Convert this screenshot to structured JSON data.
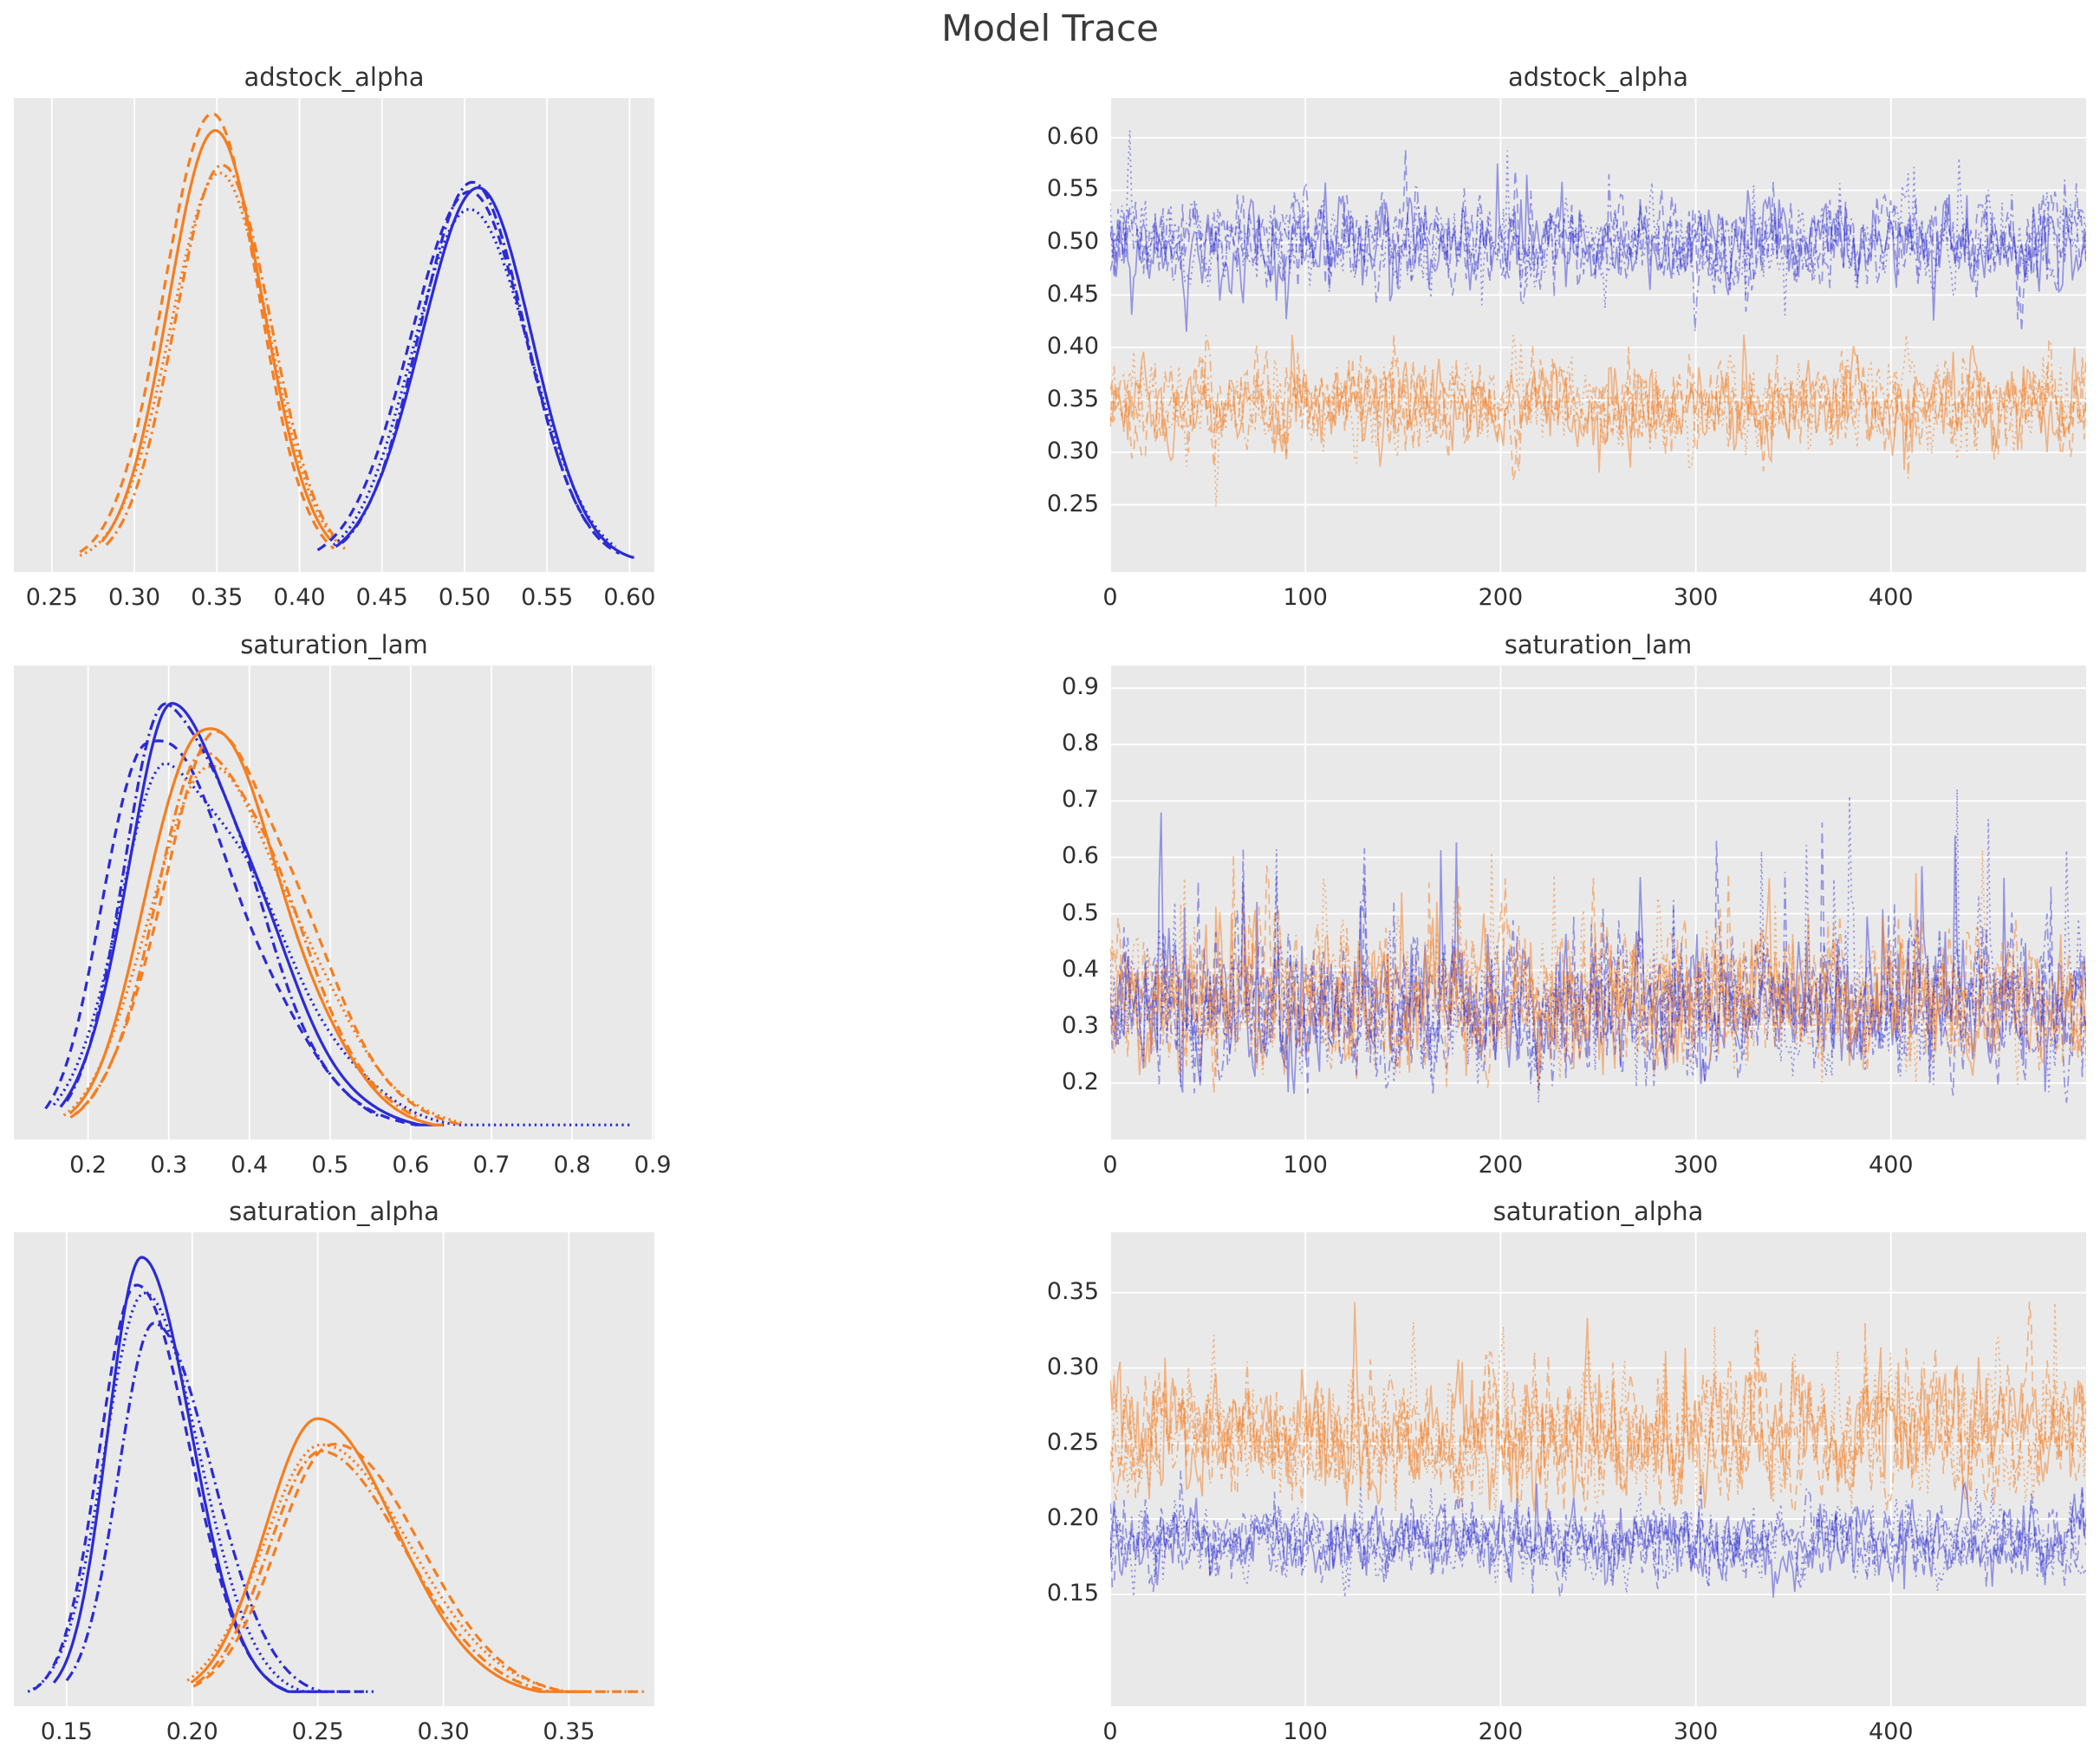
{
  "title": "Model Trace",
  "colors": {
    "blue": "#2b2bd5",
    "orange": "#f57e20",
    "trace_blue_opacity": 0.45,
    "trace_orange_opacity": 0.5,
    "plot_bg": "#e9e9e9",
    "grid": "#ffffff",
    "text": "#333333"
  },
  "chart_data": [
    {
      "type": "kde",
      "title": "adstock_alpha",
      "xlim": [
        0.227,
        0.615
      ],
      "xtick_values": [
        0.25,
        0.3,
        0.35,
        0.4,
        0.45,
        0.5,
        0.55,
        0.6
      ],
      "xtick_labels": [
        "0.25",
        "0.30",
        "0.35",
        "0.40",
        "0.45",
        "0.50",
        "0.55",
        "0.60"
      ],
      "chains": [
        {
          "color": "orange",
          "style": "dashed",
          "mode": 0.348,
          "sl": 0.03,
          "sr": 0.028,
          "peak": 0.975,
          "el": 2.7,
          "er": 2.6
        },
        {
          "color": "orange",
          "style": "dashdot",
          "mode": 0.353,
          "sl": 0.028,
          "sr": 0.029,
          "peak": 0.905,
          "el": 2.5,
          "er": 2.5
        },
        {
          "color": "orange",
          "style": "dotted",
          "mode": 0.351,
          "sl": 0.03,
          "sr": 0.03,
          "peak": 0.845,
          "el": 2.8,
          "er": 2.6
        },
        {
          "color": "orange",
          "style": "solid",
          "mode": 0.35,
          "sl": 0.0285,
          "sr": 0.0285,
          "peak": 0.955,
          "el": 2.45,
          "er": 2.4
        },
        {
          "color": "blue",
          "style": "dashed",
          "mode": 0.502,
          "sl": 0.035,
          "sr": 0.034,
          "peak": 0.835,
          "el": 2.6,
          "er": 2.7
        },
        {
          "color": "blue",
          "style": "dashdot",
          "mode": 0.505,
          "sl": 0.033,
          "sr": 0.033,
          "peak": 0.82,
          "el": 2.4,
          "er": 2.4
        },
        {
          "color": "blue",
          "style": "dotted",
          "mode": 0.504,
          "sl": 0.034,
          "sr": 0.035,
          "peak": 0.8,
          "el": 2.45,
          "er": 2.5
        },
        {
          "color": "blue",
          "style": "solid",
          "mode": 0.507,
          "sl": 0.034,
          "sr": 0.033,
          "peak": 0.825,
          "el": 2.5,
          "er": 2.9
        }
      ]
    },
    {
      "type": "trace",
      "title": "adstock_alpha",
      "n": 500,
      "xlim": [
        0,
        500
      ],
      "ylim": [
        0.186,
        0.638
      ],
      "xtick_values": [
        0,
        100,
        200,
        300,
        400
      ],
      "xtick_labels": [
        "0",
        "100",
        "200",
        "300",
        "400"
      ],
      "ytick_values": [
        0.25,
        0.3,
        0.35,
        0.4,
        0.45,
        0.5,
        0.55,
        0.6
      ],
      "ytick_labels": [
        "0.25",
        "0.30",
        "0.35",
        "0.40",
        "0.45",
        "0.50",
        "0.55",
        "0.60"
      ],
      "series": [
        {
          "color": "blue",
          "style": "solid",
          "mean": 0.498,
          "sd": 0.021,
          "min": 0.415,
          "max": 0.615,
          "spike_p": 0.02,
          "spike_m": 0.07,
          "spike_dir": 0,
          "seed": 11
        },
        {
          "color": "blue",
          "style": "dashed",
          "mean": 0.5,
          "sd": 0.021,
          "min": 0.415,
          "max": 0.615,
          "spike_p": 0.02,
          "spike_m": 0.07,
          "spike_dir": 0,
          "seed": 12
        },
        {
          "color": "blue",
          "style": "dashdot",
          "mean": 0.497,
          "sd": 0.02,
          "min": 0.415,
          "max": 0.615,
          "spike_p": 0.02,
          "spike_m": 0.07,
          "spike_dir": 0,
          "seed": 13
        },
        {
          "color": "blue",
          "style": "dotted",
          "mean": 0.499,
          "sd": 0.022,
          "min": 0.415,
          "max": 0.615,
          "spike_p": 0.025,
          "spike_m": 0.08,
          "spike_dir": 0,
          "seed": 14
        },
        {
          "color": "orange",
          "style": "solid",
          "mean": 0.346,
          "sd": 0.021,
          "min": 0.248,
          "max": 0.412,
          "spike_p": 0.02,
          "spike_m": 0.06,
          "spike_dir": 0,
          "seed": 15
        },
        {
          "color": "orange",
          "style": "dashed",
          "mean": 0.344,
          "sd": 0.021,
          "min": 0.248,
          "max": 0.412,
          "spike_p": 0.02,
          "spike_m": 0.06,
          "spike_dir": 0,
          "seed": 16
        },
        {
          "color": "orange",
          "style": "dashdot",
          "mean": 0.347,
          "sd": 0.02,
          "min": 0.248,
          "max": 0.412,
          "spike_p": 0.02,
          "spike_m": 0.06,
          "spike_dir": 0,
          "seed": 17
        },
        {
          "color": "orange",
          "style": "dotted",
          "mean": 0.345,
          "sd": 0.022,
          "min": 0.248,
          "max": 0.412,
          "spike_p": 0.025,
          "spike_m": 0.07,
          "spike_dir": 0,
          "seed": 18
        }
      ]
    },
    {
      "type": "kde",
      "title": "saturation_lam",
      "xlim": [
        0.108,
        0.902
      ],
      "xtick_values": [
        0.2,
        0.3,
        0.4,
        0.5,
        0.6,
        0.7,
        0.8,
        0.9
      ],
      "xtick_labels": [
        "0.2",
        "0.3",
        "0.4",
        "0.5",
        "0.6",
        "0.7",
        "0.8",
        "0.9"
      ],
      "chains": [
        {
          "color": "blue",
          "style": "dashed",
          "mode": 0.272,
          "sl": 0.052,
          "sr": 0.115,
          "peak": 0.875,
          "el": 2.4,
          "er": 3.0
        },
        {
          "color": "blue",
          "style": "dotted",
          "mode": 0.3,
          "sl": 0.062,
          "sr": 0.125,
          "peak": 0.8,
          "el": 2.3,
          "er": 4.6
        },
        {
          "color": "orange",
          "style": "dotted",
          "mode": 0.345,
          "sl": 0.07,
          "sr": 0.115,
          "peak": 0.79,
          "el": 2.5,
          "er": 2.8
        },
        {
          "color": "orange",
          "style": "dashdot",
          "mode": 0.35,
          "sl": 0.066,
          "sr": 0.1,
          "peak": 0.835,
          "el": 2.5,
          "er": 2.6
        },
        {
          "color": "blue",
          "style": "dashdot",
          "mode": 0.3,
          "sl": 0.055,
          "sr": 0.1,
          "peak": 0.945,
          "el": 2.3,
          "er": 2.6
        },
        {
          "color": "orange",
          "style": "dashed",
          "mode": 0.36,
          "sl": 0.07,
          "sr": 0.105,
          "peak": 0.86,
          "el": 2.6,
          "er": 2.9
        },
        {
          "color": "blue",
          "style": "solid",
          "mode": 0.305,
          "sl": 0.058,
          "sr": 0.105,
          "peak": 0.92,
          "el": 2.4,
          "er": 3.2
        },
        {
          "color": "orange",
          "style": "solid",
          "mode": 0.34,
          "sl": 0.065,
          "sr": 0.1,
          "peak": 0.9,
          "el": 2.5,
          "er": 3.0
        }
      ]
    },
    {
      "type": "trace",
      "title": "saturation_lam",
      "n": 500,
      "xlim": [
        0,
        500
      ],
      "ylim": [
        0.1,
        0.94
      ],
      "xtick_values": [
        0,
        100,
        200,
        300,
        400
      ],
      "xtick_labels": [
        "0",
        "100",
        "200",
        "300",
        "400"
      ],
      "ytick_values": [
        0.2,
        0.3,
        0.4,
        0.5,
        0.6,
        0.7,
        0.8,
        0.9
      ],
      "ytick_labels": [
        "0.2",
        "0.3",
        "0.4",
        "0.5",
        "0.6",
        "0.7",
        "0.8",
        "0.9"
      ],
      "series": [
        {
          "color": "blue",
          "style": "solid",
          "mean": 0.325,
          "sd": 0.06,
          "min": 0.165,
          "max": 0.9,
          "spike_p": 0.03,
          "spike_m": 0.28,
          "spike_dir": 1,
          "seed": 21
        },
        {
          "color": "orange",
          "style": "solid",
          "mean": 0.345,
          "sd": 0.058,
          "min": 0.18,
          "max": 0.8,
          "spike_p": 0.028,
          "spike_m": 0.22,
          "spike_dir": 1,
          "seed": 22
        },
        {
          "color": "blue",
          "style": "dashed",
          "mean": 0.33,
          "sd": 0.062,
          "min": 0.165,
          "max": 0.88,
          "spike_p": 0.03,
          "spike_m": 0.26,
          "spike_dir": 1,
          "seed": 23
        },
        {
          "color": "orange",
          "style": "dashed",
          "mean": 0.35,
          "sd": 0.058,
          "min": 0.18,
          "max": 0.78,
          "spike_p": 0.028,
          "spike_m": 0.22,
          "spike_dir": 1,
          "seed": 24
        },
        {
          "color": "blue",
          "style": "dashdot",
          "mean": 0.328,
          "sd": 0.06,
          "min": 0.165,
          "max": 0.85,
          "spike_p": 0.028,
          "spike_m": 0.25,
          "spike_dir": 1,
          "seed": 25
        },
        {
          "color": "orange",
          "style": "dashdot",
          "mean": 0.347,
          "sd": 0.057,
          "min": 0.18,
          "max": 0.76,
          "spike_p": 0.026,
          "spike_m": 0.21,
          "spike_dir": 1,
          "seed": 26
        },
        {
          "color": "blue",
          "style": "dotted",
          "mean": 0.33,
          "sd": 0.064,
          "min": 0.165,
          "max": 0.9,
          "spike_p": 0.034,
          "spike_m": 0.3,
          "spike_dir": 1,
          "seed": 27
        },
        {
          "color": "orange",
          "style": "dotted",
          "mean": 0.348,
          "sd": 0.06,
          "min": 0.18,
          "max": 0.8,
          "spike_p": 0.028,
          "spike_m": 0.23,
          "spike_dir": 1,
          "seed": 28
        }
      ]
    },
    {
      "type": "kde",
      "title": "saturation_alpha",
      "xlim": [
        0.129,
        0.384
      ],
      "xtick_values": [
        0.15,
        0.2,
        0.25,
        0.3,
        0.35
      ],
      "xtick_labels": [
        "0.15",
        "0.20",
        "0.25",
        "0.30",
        "0.35"
      ],
      "chains": [
        {
          "color": "blue",
          "style": "dotted",
          "mode": 0.181,
          "sl": 0.016,
          "sr": 0.022,
          "peak": 0.87,
          "el": 2.9,
          "er": 4.2
        },
        {
          "color": "blue",
          "style": "dashdot",
          "mode": 0.185,
          "sl": 0.014,
          "sr": 0.023,
          "peak": 0.845,
          "el": 2.5,
          "er": 3.4
        },
        {
          "color": "blue",
          "style": "dashed",
          "mode": 0.1775,
          "sl": 0.0145,
          "sr": 0.021,
          "peak": 0.92,
          "el": 2.8,
          "er": 4.4
        },
        {
          "color": "blue",
          "style": "solid",
          "mode": 0.18,
          "sl": 0.0135,
          "sr": 0.02,
          "peak": 0.95,
          "el": 2.6,
          "er": 3.6
        },
        {
          "color": "orange",
          "style": "dotted",
          "mode": 0.251,
          "sl": 0.023,
          "sr": 0.036,
          "peak": 0.545,
          "el": 2.3,
          "er": 3.6
        },
        {
          "color": "orange",
          "style": "dashdot",
          "mode": 0.252,
          "sl": 0.021,
          "sr": 0.033,
          "peak": 0.55,
          "el": 2.4,
          "er": 3.3
        },
        {
          "color": "orange",
          "style": "dashed",
          "mode": 0.2555,
          "sl": 0.022,
          "sr": 0.034,
          "peak": 0.565,
          "el": 2.5,
          "er": 3.6
        },
        {
          "color": "orange",
          "style": "solid",
          "mode": 0.25,
          "sl": 0.021,
          "sr": 0.032,
          "peak": 0.6,
          "el": 2.4,
          "er": 3.3
        }
      ]
    },
    {
      "type": "trace",
      "title": "saturation_alpha",
      "n": 500,
      "xlim": [
        0,
        500
      ],
      "ylim": [
        0.076,
        0.39
      ],
      "xtick_values": [
        0,
        100,
        200,
        300,
        400
      ],
      "xtick_labels": [
        "0",
        "100",
        "200",
        "300",
        "400"
      ],
      "ytick_values": [
        0.15,
        0.2,
        0.25,
        0.3,
        0.35
      ],
      "ytick_labels": [
        "0.15",
        "0.20",
        "0.25",
        "0.30",
        "0.35"
      ],
      "series": [
        {
          "color": "orange",
          "style": "solid",
          "mean": 0.255,
          "sd": 0.02,
          "min": 0.205,
          "max": 0.385,
          "spike_p": 0.03,
          "spike_m": 0.06,
          "spike_dir": 1,
          "seed": 31
        },
        {
          "color": "orange",
          "style": "dashed",
          "mean": 0.257,
          "sd": 0.02,
          "min": 0.205,
          "max": 0.38,
          "spike_p": 0.028,
          "spike_m": 0.06,
          "spike_dir": 1,
          "seed": 32
        },
        {
          "color": "orange",
          "style": "dashdot",
          "mean": 0.254,
          "sd": 0.019,
          "min": 0.205,
          "max": 0.375,
          "spike_p": 0.026,
          "spike_m": 0.055,
          "spike_dir": 1,
          "seed": 33
        },
        {
          "color": "orange",
          "style": "dotted",
          "mean": 0.256,
          "sd": 0.021,
          "min": 0.205,
          "max": 0.385,
          "spike_p": 0.03,
          "spike_m": 0.065,
          "spike_dir": 1,
          "seed": 34
        },
        {
          "color": "blue",
          "style": "solid",
          "mean": 0.186,
          "sd": 0.012,
          "min": 0.148,
          "max": 0.235,
          "spike_p": 0.02,
          "spike_m": 0.03,
          "spike_dir": 0,
          "seed": 35
        },
        {
          "color": "blue",
          "style": "dashed",
          "mean": 0.185,
          "sd": 0.012,
          "min": 0.148,
          "max": 0.235,
          "spike_p": 0.02,
          "spike_m": 0.03,
          "spike_dir": 0,
          "seed": 36
        },
        {
          "color": "blue",
          "style": "dashdot",
          "mean": 0.187,
          "sd": 0.011,
          "min": 0.15,
          "max": 0.235,
          "spike_p": 0.02,
          "spike_m": 0.028,
          "spike_dir": 0,
          "seed": 37
        },
        {
          "color": "blue",
          "style": "dotted",
          "mean": 0.185,
          "sd": 0.013,
          "min": 0.148,
          "max": 0.235,
          "spike_p": 0.022,
          "spike_m": 0.032,
          "spike_dir": 0,
          "seed": 38
        }
      ]
    }
  ]
}
